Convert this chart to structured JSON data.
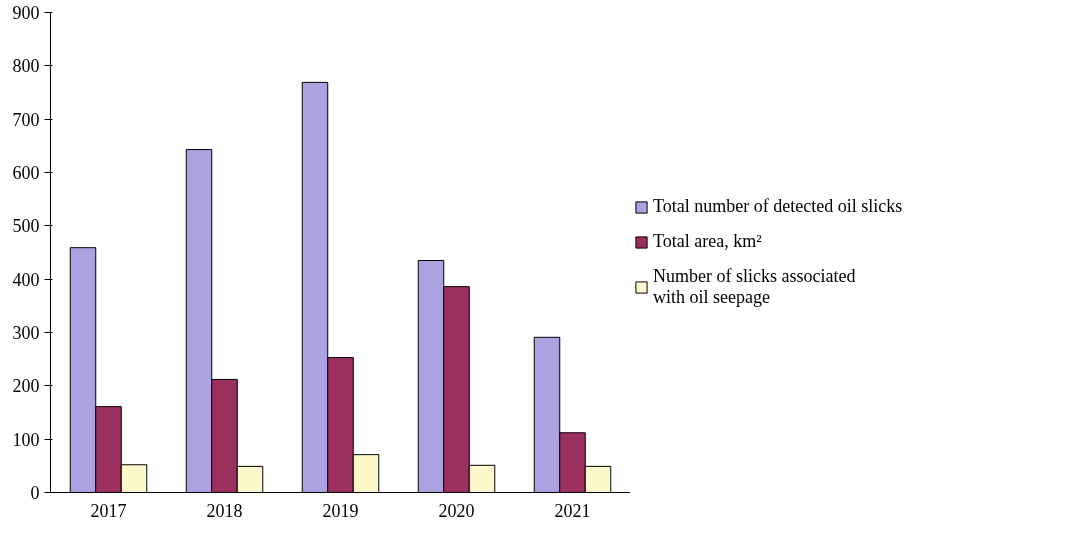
{
  "chart_data": {
    "type": "bar",
    "categories": [
      "2017",
      "2018",
      "2019",
      "2020",
      "2021"
    ],
    "series": [
      {
        "name": "Total number of detected oil slicks",
        "color": "#aba3e0",
        "values": [
          459,
          643,
          769,
          435,
          291
        ]
      },
      {
        "name": "Total area, km²",
        "color": "#9b3060",
        "values": [
          161,
          212,
          253,
          386,
          112
        ]
      },
      {
        "name": "Number of slicks associated with oil seepage",
        "color": "#fdf8cc",
        "values": [
          52,
          49,
          71,
          51,
          49
        ]
      }
    ],
    "ylim": [
      0,
      900
    ],
    "yticks": [
      0,
      100,
      200,
      300,
      400,
      500,
      600,
      700,
      800,
      900
    ],
    "grid": false,
    "legend": "right"
  }
}
